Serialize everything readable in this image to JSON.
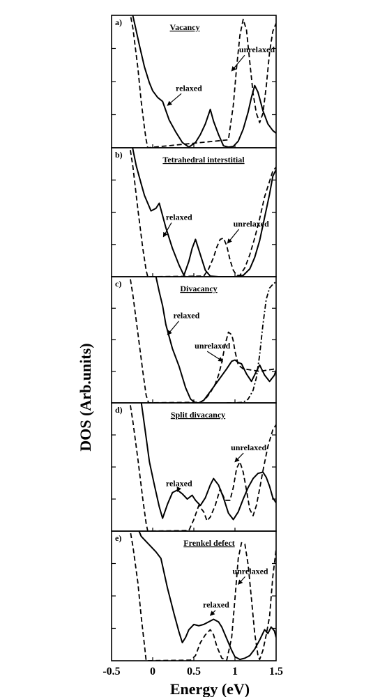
{
  "chart_data": {
    "type": "line",
    "xlabel": "Energy (eV)",
    "ylabel": "DOS (Arb.units)",
    "xlim": [
      -0.5,
      1.5
    ],
    "x_ticks": [
      -0.5,
      0,
      0.5,
      1,
      1.5
    ],
    "x_tick_labels": [
      "-0.5",
      "0",
      "0.5",
      "1",
      "1.5"
    ],
    "panels": [
      {
        "letter": "a)",
        "title": "Vacancy",
        "ylim": [
          0,
          10
        ],
        "series": [
          {
            "name": "relaxed",
            "style": "solid",
            "x": [
              -0.28,
              -0.22,
              -0.16,
              -0.1,
              -0.04,
              0.0,
              0.06,
              0.12,
              0.2,
              0.28,
              0.36,
              0.44,
              0.52,
              0.58,
              0.64,
              0.7,
              0.74,
              0.8,
              0.86,
              0.92,
              0.98,
              1.04,
              1.1,
              1.16,
              1.2,
              1.24,
              1.28,
              1.34,
              1.4,
              1.46,
              1.5
            ],
            "y": [
              11,
              9.4,
              7.7,
              6.1,
              4.9,
              4.3,
              3.8,
              3.5,
              2.1,
              1.2,
              0.4,
              0.05,
              0.4,
              1.0,
              1.8,
              2.9,
              2.0,
              1.0,
              0.15,
              0.05,
              0.1,
              0.5,
              1.4,
              2.7,
              3.8,
              4.7,
              4.2,
              2.8,
              1.8,
              1.3,
              1.1
            ]
          },
          {
            "name": "unrelaxed",
            "style": "dashed",
            "x": [
              -0.3,
              -0.24,
              -0.18,
              -0.14,
              -0.1,
              -0.08,
              -0.06,
              0.92,
              0.98,
              1.02,
              1.06,
              1.1,
              1.14,
              1.18,
              1.22,
              1.26,
              1.3,
              1.34,
              1.38,
              1.42,
              1.46,
              1.5
            ],
            "y": [
              11,
              9,
              6,
              3.5,
              1.5,
              0.6,
              0,
              0.6,
              3.2,
              6.1,
              8.5,
              9.7,
              8.9,
              6.5,
              4.1,
              2.6,
              1.9,
              2.6,
              4.6,
              7.2,
              8.8,
              9.4
            ]
          }
        ],
        "annotations": [
          {
            "text": "unrelaxed",
            "x": 1.05,
            "y": 7.2,
            "ax": 0.96,
            "ay": 5.8
          },
          {
            "text": "relaxed",
            "x": 0.28,
            "y": 4.3,
            "ax": 0.18,
            "ay": 3.2
          }
        ]
      },
      {
        "letter": "b)",
        "title": "Tetrahedral interstitial",
        "ylim": [
          0,
          10
        ],
        "series": [
          {
            "name": "relaxed",
            "style": "solid",
            "x": [
              -0.26,
              -0.2,
              -0.14,
              -0.1,
              -0.06,
              -0.02,
              0.04,
              0.08,
              0.16,
              0.24,
              0.32,
              0.38,
              0.44,
              0.48,
              0.52,
              0.58,
              0.64,
              0.7,
              0.8,
              0.9,
              1.0,
              1.1,
              1.18,
              1.24,
              1.3,
              1.36,
              1.42,
              1.46,
              1.5
            ],
            "y": [
              10.5,
              8.6,
              7.2,
              6.3,
              5.7,
              5.1,
              5.3,
              5.7,
              3.8,
              2.2,
              0.9,
              0.1,
              1.2,
              2.2,
              2.9,
              1.7,
              0.5,
              0.05,
              0,
              0,
              0,
              0.1,
              0.6,
              1.5,
              2.8,
              4.6,
              6.4,
              7.8,
              8.3
            ]
          },
          {
            "name": "unrelaxed",
            "style": "dashed",
            "x": [
              -0.3,
              -0.24,
              -0.18,
              -0.12,
              -0.08,
              -0.06,
              0.62,
              0.68,
              0.74,
              0.78,
              0.82,
              0.86,
              0.9,
              0.94,
              0.98,
              1.02,
              1.06,
              1.12,
              1.18,
              1.24,
              1.3,
              1.36,
              1.42,
              1.46,
              1.5
            ],
            "y": [
              11,
              8.5,
              5.2,
              2.2,
              0.5,
              0,
              0.05,
              0.6,
              1.5,
              2.3,
              2.9,
              3.0,
              2.4,
              1.3,
              0.5,
              0.1,
              0.1,
              0.7,
              1.7,
              3.0,
              4.5,
              6.2,
              7.4,
              8.2,
              8.5
            ]
          }
        ],
        "annotations": [
          {
            "text": "relaxed",
            "x": 0.16,
            "y": 4.4,
            "ax": 0.13,
            "ay": 3.1
          },
          {
            "text": "unrelaxed",
            "x": 0.98,
            "y": 3.9,
            "ax": 0.91,
            "ay": 2.6
          }
        ]
      },
      {
        "letter": "c)",
        "title": "Divacancy",
        "ylim": [
          0,
          10
        ],
        "series": [
          {
            "name": "relaxed",
            "style": "solid",
            "x": [
              0.0,
              0.04,
              0.08,
              0.12,
              0.16,
              0.24,
              0.32,
              0.4,
              0.46,
              0.52,
              0.56,
              0.62,
              0.7,
              0.8,
              0.9,
              0.96,
              1.0,
              1.04,
              1.08,
              1.14,
              1.2,
              1.26,
              1.3,
              1.36,
              1.42,
              1.48,
              1.5
            ],
            "y": [
              11,
              10,
              8.8,
              7.7,
              6.2,
              4.3,
              2.9,
              1.2,
              0.3,
              0,
              0,
              0.2,
              0.9,
              1.8,
              2.7,
              3.3,
              3.4,
              3.2,
              3.1,
              2.3,
              1.7,
              2.5,
              3.0,
              2.2,
              1.7,
              2.2,
              2.6
            ]
          },
          {
            "name": "unrelaxed",
            "style": "dashed",
            "x": [
              -0.3,
              -0.24,
              -0.18,
              -0.12,
              -0.08,
              -0.05,
              0.58,
              0.64,
              0.7,
              0.76,
              0.8,
              0.84,
              0.88,
              0.92,
              0.96,
              0.98,
              1.0,
              1.04,
              1.1,
              1.2,
              1.3,
              1.4,
              1.5
            ],
            "y": [
              11,
              8.5,
              5.5,
              2.5,
              0.6,
              0,
              0.05,
              0.3,
              0.8,
              1.5,
              2.2,
              3.2,
              4.6,
              5.6,
              5.4,
              4.9,
              4.1,
              3.0,
              2.7,
              2.6,
              2.5,
              2.6,
              2.7
            ]
          },
          {
            "name": "",
            "style": "dashdot",
            "x": [
              0.9,
              1.0,
              1.1,
              1.16,
              1.22,
              1.26,
              1.3,
              1.34,
              1.38,
              1.42,
              1.46,
              1.5
            ],
            "y": [
              0,
              0,
              0.05,
              0.3,
              1.0,
              2.0,
              3.8,
              6.2,
              8.2,
              9.1,
              9.4,
              9.6
            ]
          }
        ],
        "annotations": [
          {
            "text": "relaxed",
            "x": 0.25,
            "y": 6.7,
            "ax": 0.18,
            "ay": 5.4
          },
          {
            "text": "unrelaxed",
            "x": 0.51,
            "y": 4.3,
            "ax": 0.85,
            "ay": 3.3
          }
        ]
      },
      {
        "letter": "d)",
        "title": "Split divacancy",
        "ylim": [
          0,
          10
        ],
        "series": [
          {
            "name": "relaxed",
            "style": "solid",
            "x": [
              -0.16,
              -0.12,
              -0.08,
              -0.04,
              0.02,
              0.08,
              0.12,
              0.18,
              0.24,
              0.3,
              0.36,
              0.42,
              0.48,
              0.52,
              0.58,
              0.64,
              0.7,
              0.74,
              0.8,
              0.86,
              0.92,
              0.98,
              1.04,
              1.1,
              1.16,
              1.22,
              1.28,
              1.34,
              1.38,
              1.42,
              1.46,
              1.5
            ],
            "y": [
              11,
              9.2,
              7.3,
              5.4,
              3.6,
              1.9,
              1.0,
              2.1,
              3.0,
              3.2,
              2.9,
              2.5,
              2.8,
              2.4,
              2.0,
              2.6,
              3.6,
              4.1,
              3.6,
              2.6,
              1.4,
              0.9,
              1.5,
              2.5,
              3.4,
              4.1,
              4.5,
              4.6,
              4.2,
              3.5,
              2.6,
              2.2
            ]
          },
          {
            "name": "unrelaxed",
            "style": "dashed",
            "x": [
              -0.3,
              -0.24,
              -0.18,
              -0.12,
              -0.08,
              -0.06,
              0.44,
              0.5,
              0.56,
              0.62,
              0.66,
              0.7,
              0.76,
              0.82,
              0.88,
              0.94,
              0.98,
              1.02,
              1.06,
              1.1,
              1.14,
              1.18,
              1.22,
              1.26,
              1.3,
              1.34,
              1.4,
              1.46,
              1.5
            ],
            "y": [
              11,
              8.5,
              5.6,
              2.5,
              0.6,
              0,
              0.05,
              0.9,
              2.0,
              1.5,
              0.8,
              1.1,
              2.0,
              3.3,
              2.4,
              2.4,
              3.4,
              4.9,
              5.4,
              4.6,
              3.2,
              1.7,
              1.2,
              2.0,
              3.3,
              4.7,
              6.6,
              7.9,
              8.3
            ]
          }
        ],
        "annotations": [
          {
            "text": "unrelaxed",
            "x": 0.95,
            "y": 6.3,
            "ax": 1.0,
            "ay": 5.4
          },
          {
            "text": "relaxed",
            "x": 0.16,
            "y": 3.5,
            "ax": 0.3,
            "ay": 3.1
          }
        ]
      },
      {
        "letter": "e)",
        "title": "Frenkel defect",
        "ylim": [
          0,
          10
        ],
        "series": [
          {
            "name": "relaxed",
            "style": "solid",
            "x": [
              -0.22,
              -0.18,
              -0.14,
              -0.08,
              -0.02,
              0.04,
              0.1,
              0.18,
              0.26,
              0.32,
              0.36,
              0.4,
              0.44,
              0.5,
              0.56,
              0.62,
              0.68,
              0.74,
              0.8,
              0.84,
              0.9,
              0.96,
              1.0,
              1.06,
              1.12,
              1.18,
              1.24,
              1.3,
              1.36,
              1.4,
              1.44,
              1.48,
              1.5
            ],
            "y": [
              11,
              10.2,
              9.6,
              9.2,
              8.8,
              8.4,
              7.9,
              5.6,
              3.6,
              2.2,
              1.4,
              1.8,
              2.4,
              2.8,
              2.7,
              2.8,
              3.0,
              3.2,
              3.0,
              2.6,
              1.7,
              0.8,
              0.3,
              0.1,
              0.2,
              0.4,
              0.9,
              1.6,
              2.4,
              2.1,
              2.6,
              2.3,
              1.8
            ]
          },
          {
            "name": "unrelaxed",
            "style": "dashed",
            "x": [
              -0.3,
              -0.24,
              -0.18,
              -0.14,
              -0.1,
              -0.08,
              0.46,
              0.52,
              0.58,
              0.64,
              0.7,
              0.74,
              0.78,
              0.84,
              0.9,
              0.96,
              1.0,
              1.04,
              1.08,
              1.12,
              1.16,
              1.2,
              1.24,
              1.28,
              1.3,
              1.34,
              1.38,
              1.42,
              1.46,
              1.5
            ],
            "y": [
              11,
              8.8,
              6.0,
              3.4,
              1.2,
              0,
              0.05,
              0.4,
              1.4,
              2.0,
              2.4,
              2.0,
              1.1,
              0.2,
              0.05,
              1.8,
              4.8,
              7.9,
              9.1,
              9.0,
              7.4,
              4.8,
              2.1,
              0.4,
              0.1,
              0.8,
              2.0,
              3.4,
              6.5,
              8.6
            ]
          }
        ],
        "annotations": [
          {
            "text": "unrelaxed",
            "x": 0.97,
            "y": 6.7,
            "ax": 1.04,
            "ay": 5.9
          },
          {
            "text": "relaxed",
            "x": 0.61,
            "y": 4.1,
            "ax": 0.7,
            "ay": 3.5
          }
        ]
      }
    ]
  }
}
